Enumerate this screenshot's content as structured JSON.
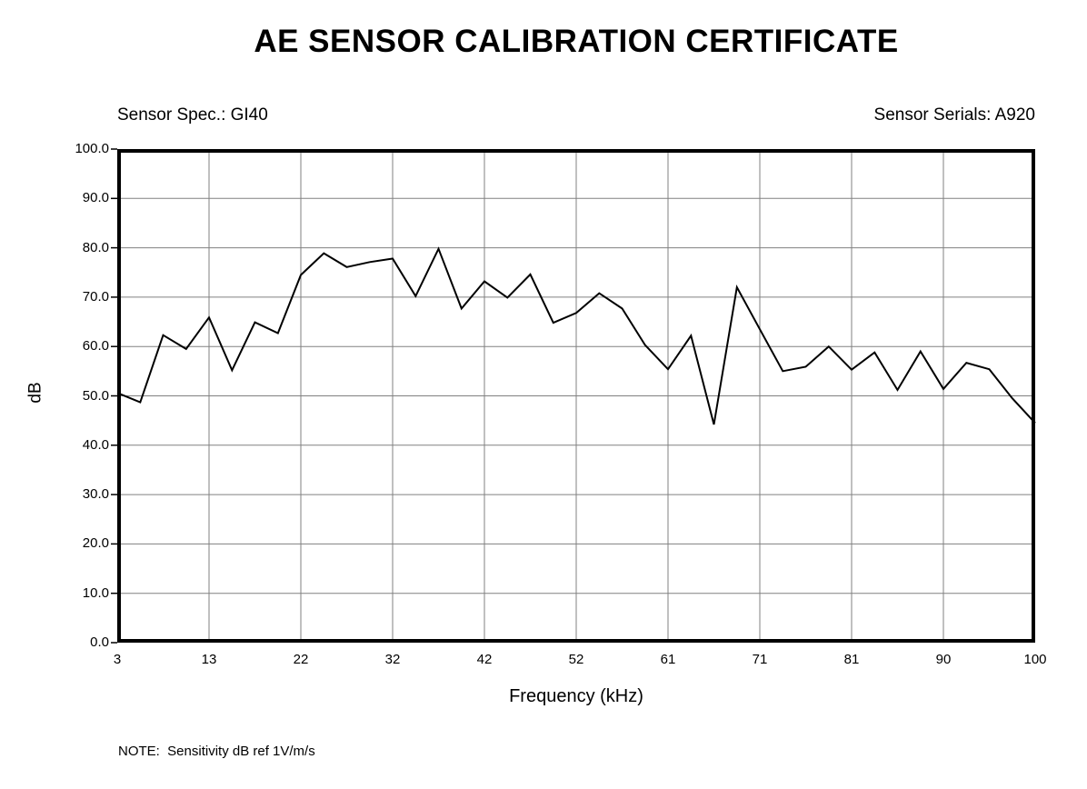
{
  "page": {
    "title": "AE SENSOR CALIBRATION CERTIFICATE",
    "sensor_spec_label": "Sensor Spec.: GI40",
    "sensor_serials_label": "Sensor Serials: A920",
    "note": "NOTE:  Sensitivity dB ref 1V/m/s"
  },
  "chart_data": {
    "type": "line",
    "title": "AE SENSOR CALIBRATION CERTIFICATE",
    "xlabel": "Frequency (kHz)",
    "ylabel": "dB",
    "ylim": [
      0,
      100
    ],
    "y_tick_step": 10,
    "y_tick_labels": [
      "0.0",
      "10.0",
      "20.0",
      "30.0",
      "40.0",
      "50.0",
      "60.0",
      "70.0",
      "80.0",
      "90.0",
      "100.0"
    ],
    "x_tick_labels": [
      "3",
      "13",
      "22",
      "32",
      "42",
      "52",
      "61",
      "71",
      "81",
      "90",
      "100"
    ],
    "grid": true,
    "legend": "none",
    "line_color": "#000000",
    "grid_color": "#808080",
    "frame_color": "#000000",
    "x": [
      3.0,
      5.4,
      7.9,
      10.3,
      12.7,
      15.1,
      17.6,
      20.0,
      22.4,
      24.8,
      27.3,
      29.7,
      32.1,
      34.5,
      37.0,
      39.4,
      41.8,
      44.2,
      46.7,
      49.1,
      51.5,
      53.9,
      56.4,
      58.8,
      61.2,
      63.6,
      66.1,
      68.5,
      70.9,
      73.3,
      75.8,
      78.2,
      80.6,
      83.0,
      85.5,
      87.9,
      90.3,
      92.7,
      95.2,
      97.6,
      100.0
    ],
    "values": [
      50.6,
      48.7,
      62.3,
      59.5,
      65.9,
      55.2,
      64.9,
      62.7,
      74.5,
      78.9,
      76.1,
      77.1,
      77.8,
      70.2,
      79.8,
      67.7,
      73.2,
      69.9,
      74.6,
      64.8,
      66.8,
      70.8,
      67.7,
      60.3,
      55.4,
      62.2,
      44.2,
      72.0,
      63.5,
      55.0,
      55.9,
      60.0,
      55.3,
      58.8,
      51.2,
      59.0,
      51.4,
      56.7,
      55.4,
      49.5,
      44.5
    ]
  }
}
